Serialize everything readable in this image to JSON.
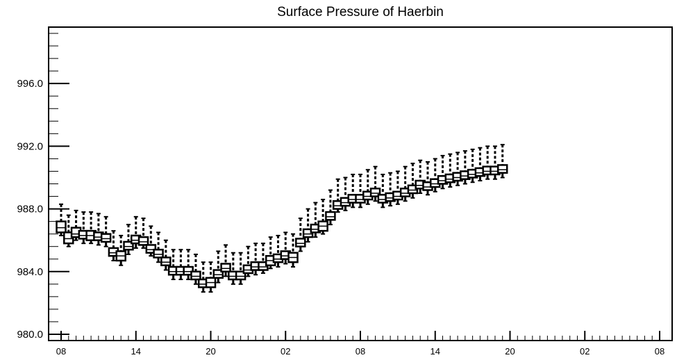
{
  "chart_data": {
    "type": "box",
    "title": "Surface Pressure of Haerbin",
    "xlabel": "",
    "ylabel": "",
    "ylim": [
      979.6,
      999.6
    ],
    "y_major_ticks": [
      980.0,
      984.0,
      988.0,
      992.0,
      996.0
    ],
    "y_tick_labels": [
      "980.0",
      "984.0",
      "988.0",
      "992.0",
      "996.0"
    ],
    "x_count": 60,
    "x_tick_labels": [
      {
        "index": 0,
        "label": "08"
      },
      {
        "index": 10,
        "label": "14"
      },
      {
        "index": 20,
        "label": "20"
      },
      {
        "index": 30,
        "label": "02"
      },
      {
        "index": 40,
        "label": "08"
      },
      {
        "index": 50,
        "label": "14"
      },
      {
        "index": 60,
        "label": "20"
      },
      {
        "index": 70,
        "label": "02"
      },
      {
        "index": 80,
        "label": "08"
      }
    ],
    "series": [
      {
        "median": [
          986.8,
          986.1,
          986.4,
          986.3,
          986.3,
          986.2,
          986.1,
          985.2,
          985.0,
          985.6,
          986.0,
          985.9,
          985.4,
          985.1,
          984.6,
          984.0,
          984.0,
          984.0,
          983.7,
          983.2,
          983.3,
          983.8,
          984.2,
          983.7,
          983.7,
          984.1,
          984.3,
          984.3,
          984.7,
          984.8,
          985.0,
          984.9,
          985.8,
          986.4,
          986.7,
          986.9,
          987.5,
          988.2,
          988.4,
          988.6,
          988.6,
          988.8,
          989.0,
          988.6,
          988.7,
          988.8,
          989.0,
          989.2,
          989.5,
          989.4,
          989.6,
          989.8,
          989.9,
          990.0,
          990.1,
          990.2,
          990.3,
          990.4,
          990.4,
          990.5
        ],
        "q1": [
          986.5,
          985.8,
          986.2,
          986.1,
          986.0,
          986.0,
          985.9,
          985.0,
          984.7,
          985.4,
          985.8,
          985.7,
          985.2,
          984.9,
          984.4,
          983.8,
          983.8,
          983.8,
          983.5,
          983.0,
          983.0,
          983.6,
          984.0,
          983.5,
          983.5,
          983.9,
          984.1,
          984.1,
          984.4,
          984.6,
          984.8,
          984.6,
          985.6,
          986.2,
          986.5,
          986.6,
          987.3,
          988.0,
          988.2,
          988.4,
          988.4,
          988.6,
          988.8,
          988.4,
          988.5,
          988.6,
          988.8,
          989.0,
          989.3,
          989.2,
          989.4,
          989.6,
          989.7,
          989.8,
          989.9,
          990.0,
          990.1,
          990.2,
          990.2,
          990.3
        ],
        "q3": [
          987.2,
          986.5,
          986.8,
          986.6,
          986.6,
          986.5,
          986.4,
          985.5,
          985.3,
          985.9,
          986.3,
          986.2,
          985.7,
          985.4,
          984.9,
          984.3,
          984.3,
          984.3,
          984.0,
          983.5,
          983.6,
          984.1,
          984.5,
          984.0,
          984.0,
          984.4,
          984.6,
          984.6,
          985.0,
          985.1,
          985.3,
          985.2,
          986.1,
          986.7,
          987.0,
          987.2,
          987.8,
          988.5,
          988.7,
          988.9,
          988.9,
          989.1,
          989.3,
          988.9,
          989.0,
          989.1,
          989.3,
          989.5,
          989.8,
          989.7,
          989.9,
          990.1,
          990.2,
          990.3,
          990.4,
          990.5,
          990.6,
          990.7,
          990.7,
          990.8
        ],
        "min": [
          986.3,
          985.6,
          986.0,
          985.8,
          985.8,
          985.7,
          985.6,
          984.7,
          984.4,
          985.1,
          985.5,
          985.5,
          985.0,
          984.6,
          984.1,
          983.5,
          983.5,
          983.5,
          983.2,
          982.7,
          982.7,
          983.3,
          983.7,
          983.2,
          983.2,
          983.7,
          983.8,
          983.9,
          984.2,
          984.3,
          984.5,
          984.3,
          985.3,
          985.9,
          986.2,
          986.4,
          987.0,
          987.8,
          987.9,
          988.1,
          988.1,
          988.3,
          988.5,
          988.1,
          988.2,
          988.3,
          988.5,
          988.7,
          989.0,
          988.9,
          989.1,
          989.3,
          989.4,
          989.5,
          989.6,
          989.7,
          989.8,
          989.9,
          989.9,
          990.0
        ],
        "max": [
          988.3,
          987.6,
          987.9,
          987.8,
          987.8,
          987.7,
          987.5,
          986.6,
          986.3,
          987.0,
          987.5,
          987.4,
          986.9,
          986.5,
          986.0,
          985.4,
          985.4,
          985.4,
          985.1,
          984.6,
          984.6,
          985.3,
          985.7,
          985.2,
          985.2,
          985.6,
          985.8,
          985.8,
          986.2,
          986.3,
          986.5,
          986.4,
          987.4,
          988.0,
          988.4,
          988.6,
          989.2,
          989.9,
          990.0,
          990.2,
          990.2,
          990.5,
          990.7,
          990.2,
          990.3,
          990.4,
          990.7,
          990.9,
          991.1,
          991.0,
          991.2,
          991.4,
          991.5,
          991.6,
          991.7,
          991.8,
          991.9,
          992.0,
          992.0,
          992.1
        ]
      }
    ],
    "grid": false,
    "legend": "none"
  }
}
